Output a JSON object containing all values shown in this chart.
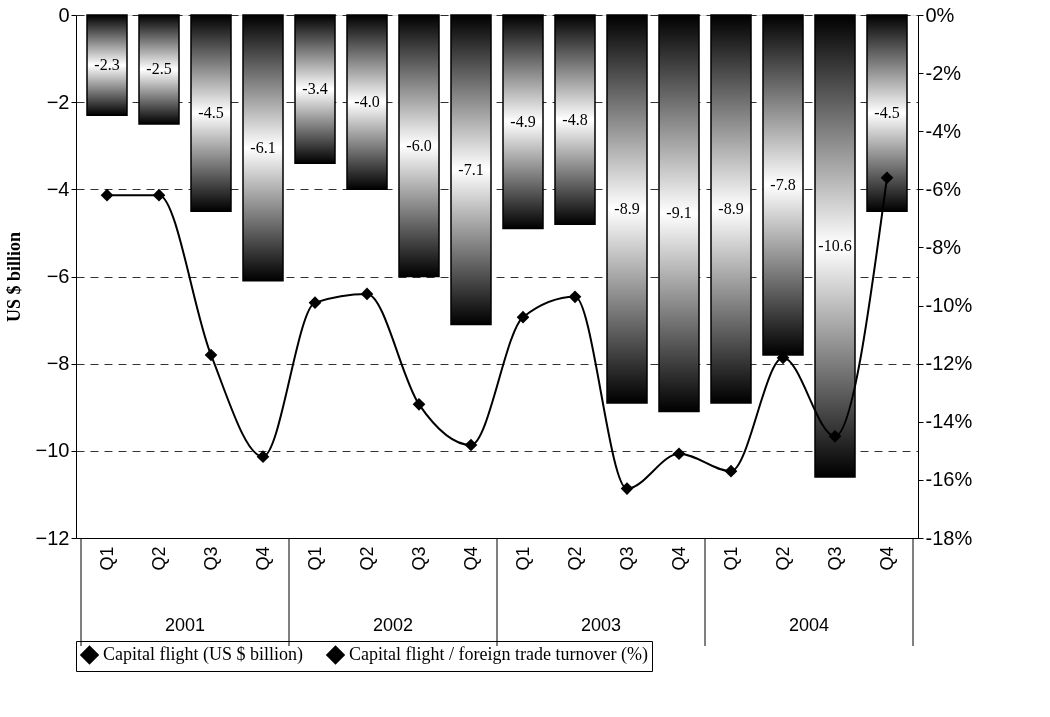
{
  "chart_data": {
    "type": "bar",
    "ylabel": "US $ billion",
    "categories": [
      "Q1",
      "Q2",
      "Q3",
      "Q4",
      "Q1",
      "Q2",
      "Q3",
      "Q4",
      "Q1",
      "Q2",
      "Q3",
      "Q4",
      "Q1",
      "Q2",
      "Q3",
      "Q4"
    ],
    "series": [
      {
        "name": "Capital flight (US $ billion)",
        "color": "#000000",
        "values": [
          -2.3,
          -2.5,
          -4.5,
          -6.1,
          -3.4,
          -4.0,
          -6.0,
          -7.1,
          -4.9,
          -4.8,
          -8.9,
          -9.1,
          -8.9,
          -7.8,
          -10.6,
          -4.5
        ],
        "value_labels": [
          "-2.3",
          "-2.5",
          "-4.5",
          "-6.1",
          "-3.4",
          "-4.0",
          "-6.0",
          "-7.1",
          "-4.9",
          "-4.8",
          "-8.9",
          "-9.1",
          "-8.9",
          "-7.8",
          "-10.6",
          "-4.5"
        ]
      },
      {
        "name": "Capital flight / foreign trade turnover (%)",
        "type": "line",
        "axis": "y2",
        "color": "#000000",
        "marker": "diamond",
        "values": [
          -6.2,
          -6.2,
          -11.7,
          -15.2,
          -9.9,
          -9.6,
          -13.4,
          -14.8,
          -10.4,
          -9.7,
          -16.3,
          -15.1,
          -15.7,
          -11.8,
          -14.5,
          -5.6
        ]
      }
    ],
    "ylim": [
      -12,
      0
    ],
    "yticks": [
      -12,
      -10,
      -8,
      -6,
      -4,
      -2,
      0
    ],
    "y2lim": [
      -18,
      0
    ],
    "y2ticks": [
      {
        "value": -18,
        "label": "-18%"
      },
      {
        "value": -16,
        "label": "-16%"
      },
      {
        "value": -14,
        "label": "-14%"
      },
      {
        "value": -12,
        "label": "-12%"
      },
      {
        "value": -10,
        "label": "-10%"
      },
      {
        "value": -8,
        "label": "-8%"
      },
      {
        "value": -6,
        "label": "-6%"
      },
      {
        "value": -4,
        "label": "-4%"
      },
      {
        "value": -2,
        "label": "-2%"
      },
      {
        "value": 0,
        "label": "0%"
      }
    ],
    "annotations": [
      "2001",
      "2002",
      "2003",
      "2004"
    ],
    "grid": "y",
    "legend": "bottom",
    "marker": "diamond",
    "line_style": "solid"
  }
}
